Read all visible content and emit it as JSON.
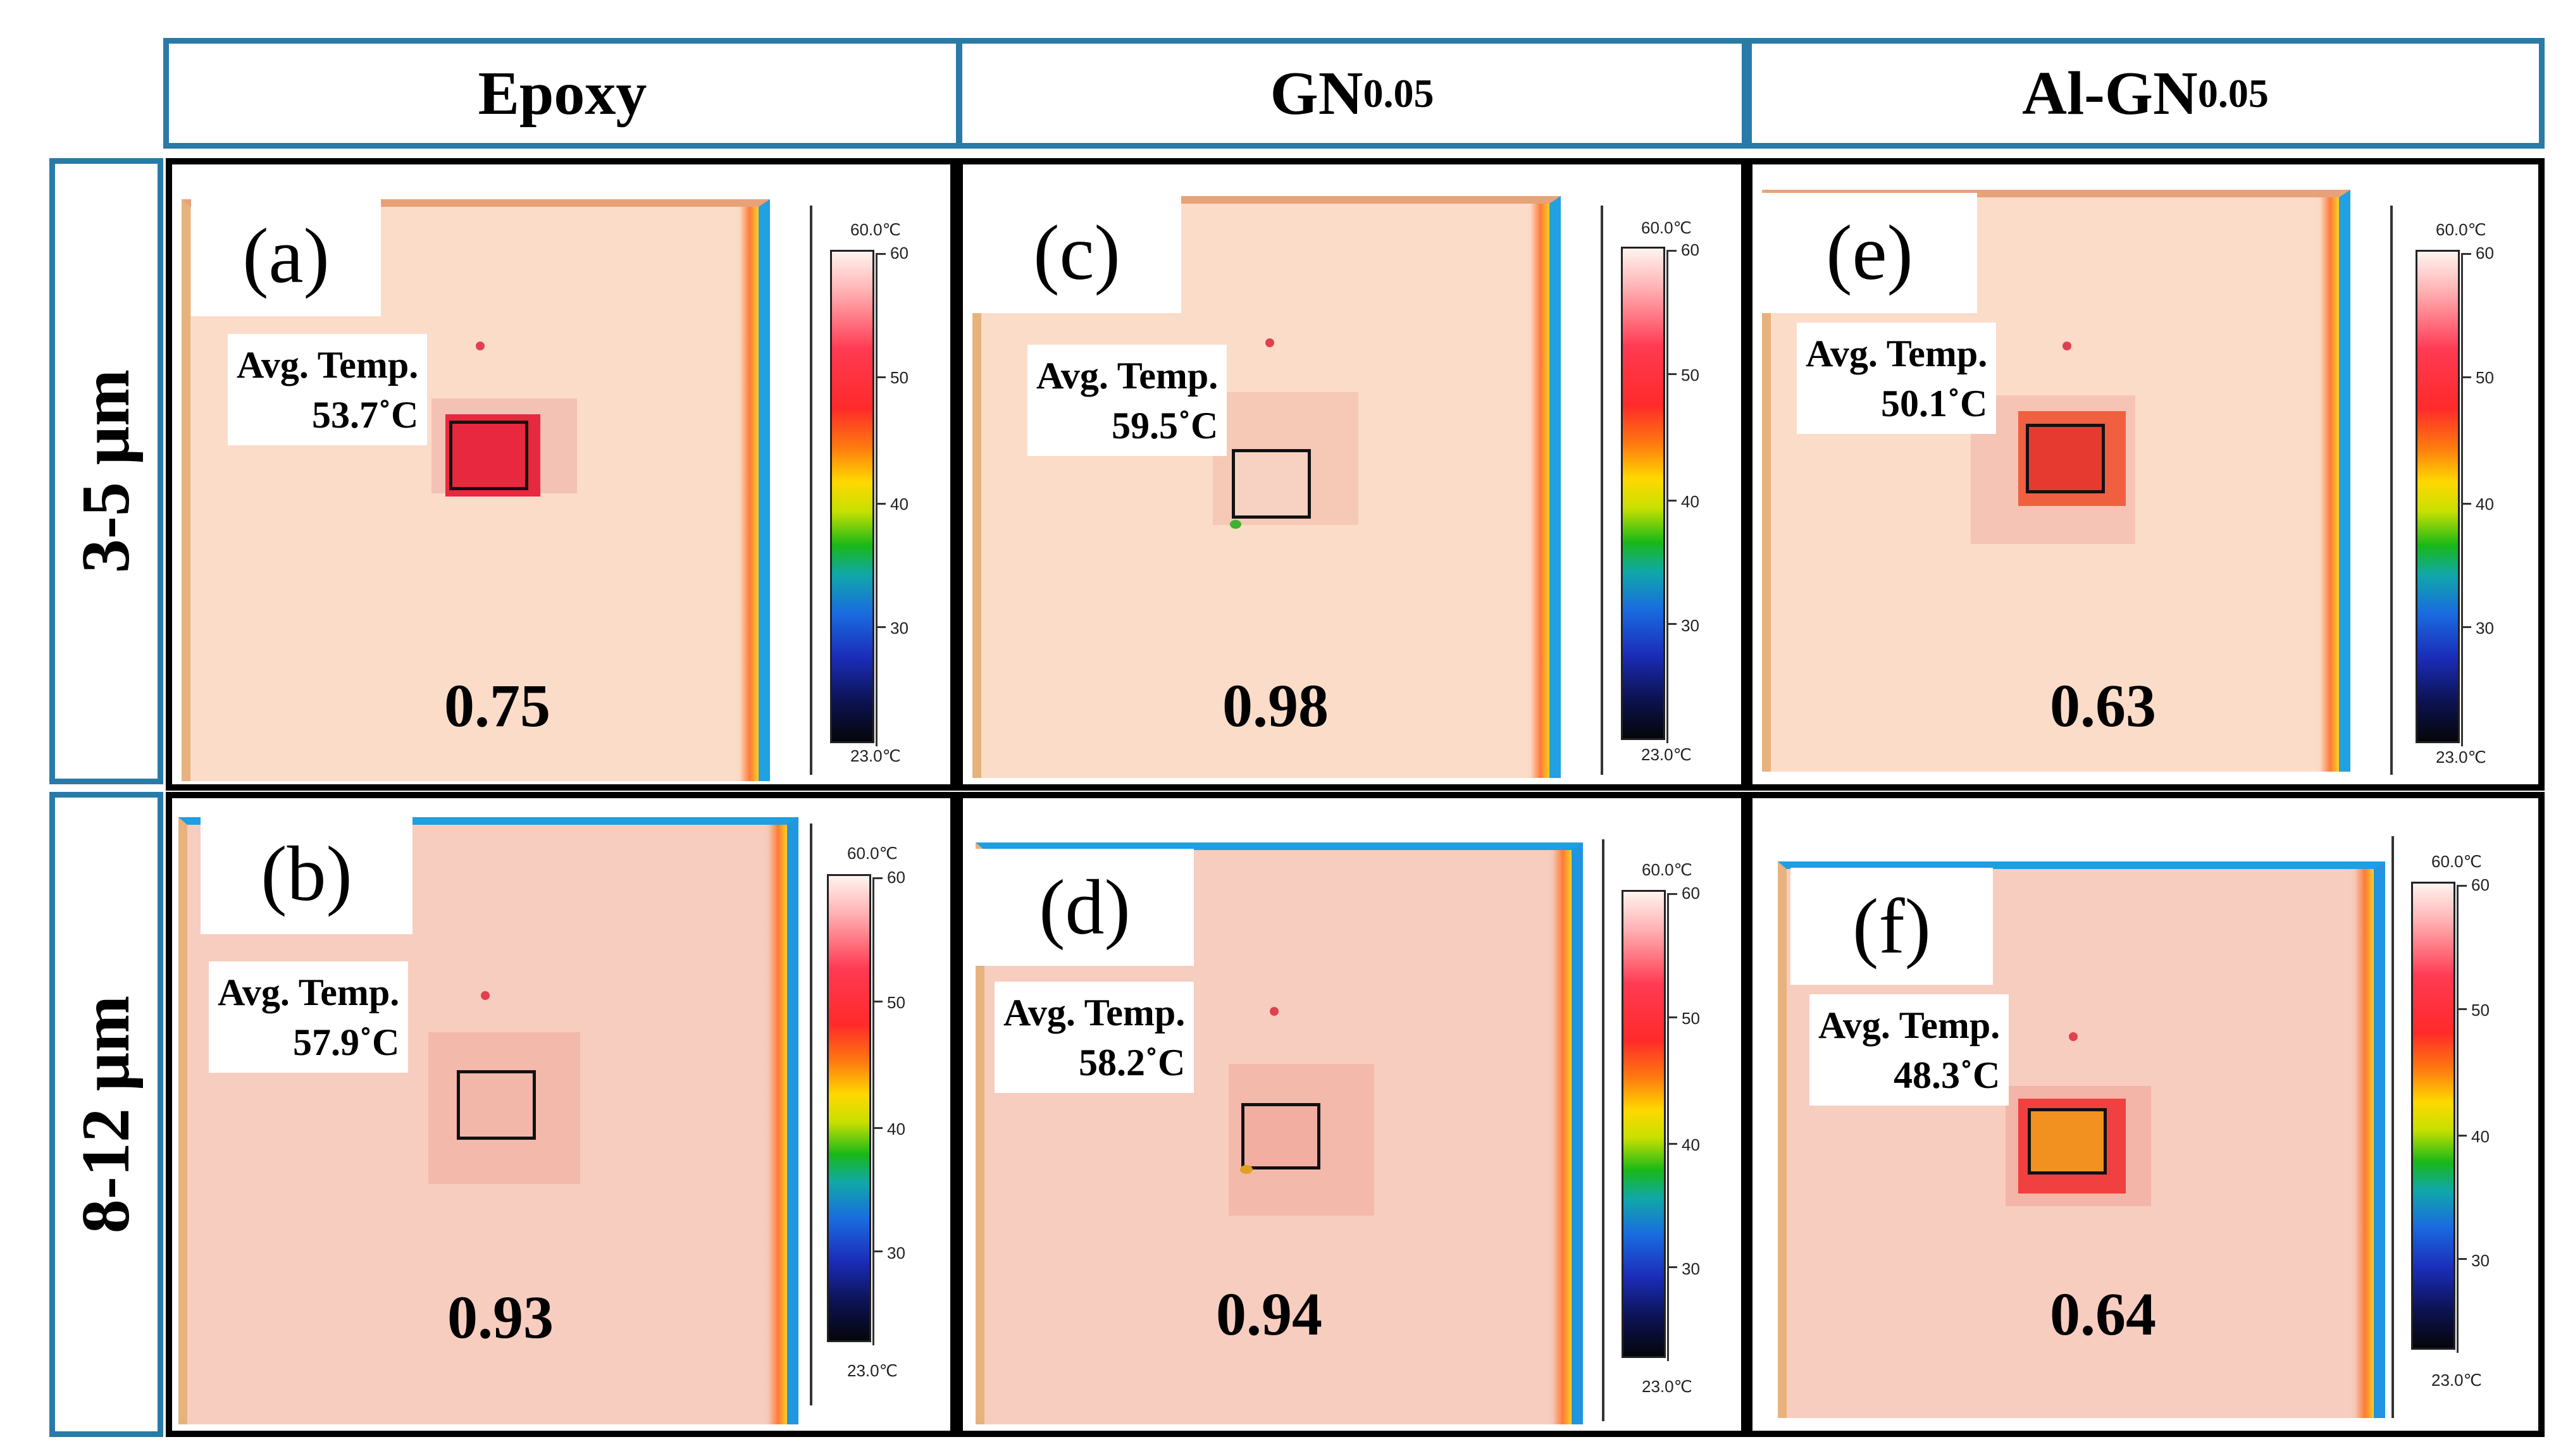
{
  "columns": [
    {
      "name": "Epoxy",
      "sub": ""
    },
    {
      "name": "GN",
      "sub": "0.05"
    },
    {
      "name": "Al-GN",
      "sub": "0.05"
    }
  ],
  "rows": [
    "3-5 μm",
    "8-12 μm"
  ],
  "avg_label": "Avg. Temp.",
  "panels": {
    "a": {
      "label": "(a)",
      "temp": "53.7˚C",
      "emissivity": "0.75"
    },
    "b": {
      "label": "(b)",
      "temp": "57.9˚C",
      "emissivity": "0.93"
    },
    "c": {
      "label": "(c)",
      "temp": "59.5˚C",
      "emissivity": "0.98"
    },
    "d": {
      "label": "(d)",
      "temp": "58.2˚C",
      "emissivity": "0.94"
    },
    "e": {
      "label": "(e)",
      "temp": "50.1˚C",
      "emissivity": "0.63"
    },
    "f": {
      "label": "(f)",
      "temp": "48.3˚C",
      "emissivity": "0.64"
    }
  },
  "scale": {
    "max": "60.0℃",
    "min": "23.0℃",
    "ticks": [
      "60",
      "50",
      "40",
      "30"
    ]
  },
  "colors": {
    "frame_blue": "#2a7aa8",
    "spot_hot": "#e8283e",
    "spot_mid": "#f06040",
    "spot_cool": "#f5bfae"
  }
}
